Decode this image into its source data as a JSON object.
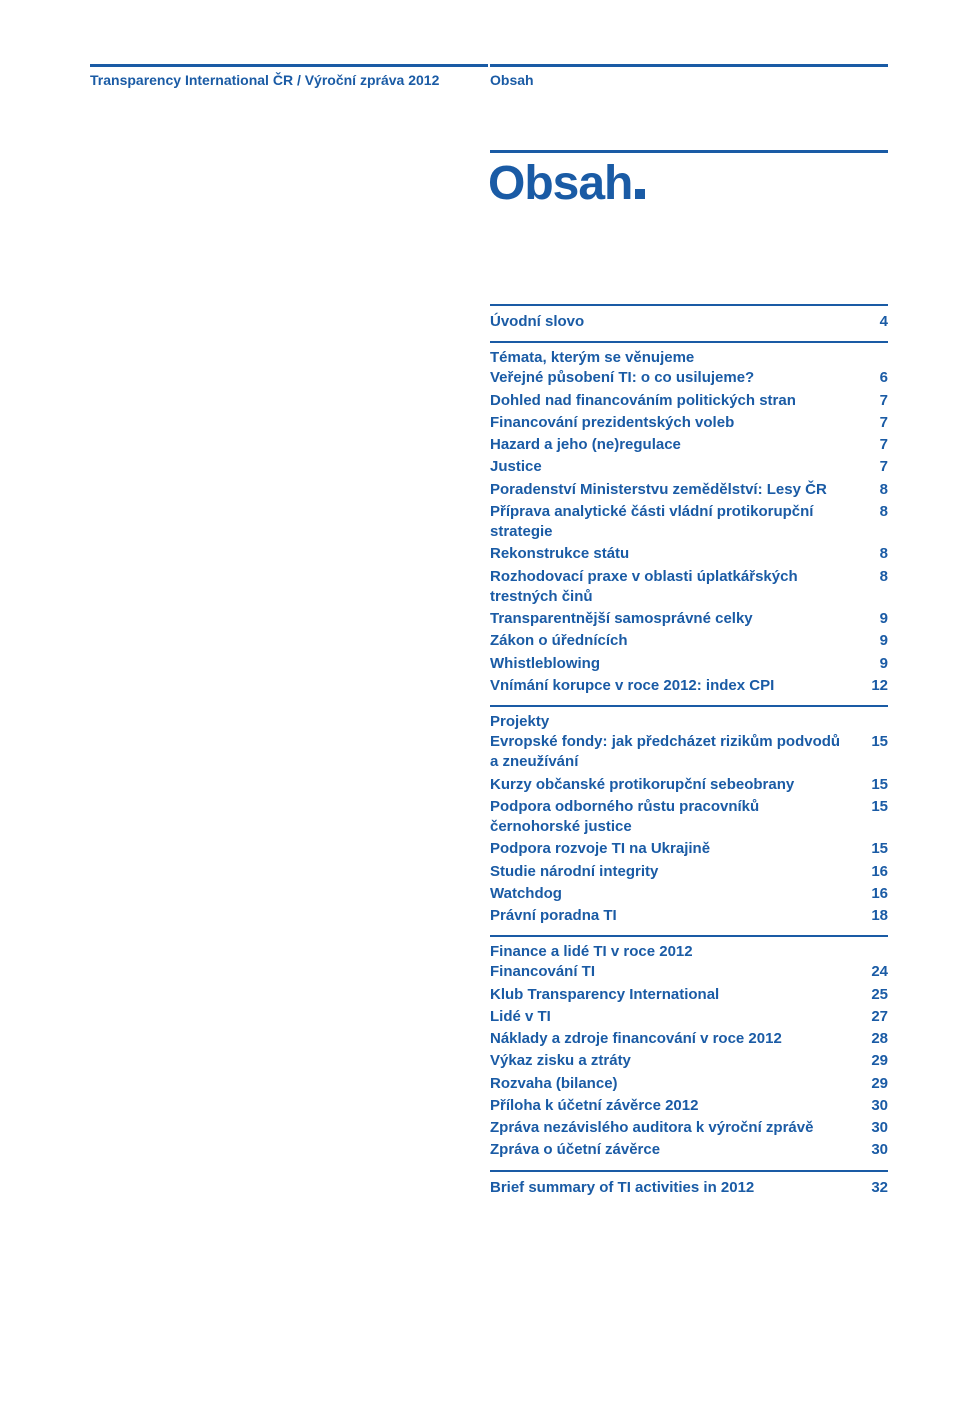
{
  "colors": {
    "accent": "#1a5ba5",
    "bg": "#ffffff"
  },
  "header": {
    "left": "Transparency International ČR / Výroční zpráva 2012",
    "right": "Obsah"
  },
  "title": "Obsah",
  "toc": {
    "intro": {
      "label": "Úvodní slovo",
      "page": "4"
    },
    "sections": [
      {
        "heading": "Témata, kterým se věnujeme",
        "items": [
          {
            "label": "Veřejné působení TI: o co usilujeme?",
            "page": "6"
          },
          {
            "label": "Dohled nad financováním politických stran",
            "page": "7"
          },
          {
            "label": "Financování prezidentských voleb",
            "page": "7"
          },
          {
            "label": "Hazard a jeho (ne)regulace",
            "page": "7"
          },
          {
            "label": "Justice",
            "page": "7"
          },
          {
            "label": "Poradenství Ministerstvu zemědělství: Lesy ČR",
            "page": "8"
          },
          {
            "label": "Příprava analytické části vládní protikorupční strategie",
            "page": "8"
          },
          {
            "label": "Rekonstrukce státu",
            "page": "8"
          },
          {
            "label": "Rozhodovací praxe v oblasti úplatkářských trestných činů",
            "page": "8"
          },
          {
            "label": "Transparentnější samosprávné celky",
            "page": "9"
          },
          {
            "label": "Zákon o úřednících",
            "page": "9"
          },
          {
            "label": "Whistleblowing",
            "page": "9"
          },
          {
            "label": "Vnímání korupce v roce 2012: index CPI",
            "page": "12"
          }
        ]
      },
      {
        "heading": "Projekty",
        "items": [
          {
            "label": "Evropské fondy: jak předcházet rizikům podvodů a zneužívání",
            "page": "15"
          },
          {
            "label": "Kurzy občanské protikorupční sebeobrany",
            "page": "15"
          },
          {
            "label": "Podpora odborného růstu pracovníků černohorské justice",
            "page": "15"
          },
          {
            "label": "Podpora rozvoje TI na Ukrajině",
            "page": "15"
          },
          {
            "label": "Studie národní integrity",
            "page": "16"
          },
          {
            "label": "Watchdog",
            "page": "16"
          },
          {
            "label": "Právní poradna TI",
            "page": "18"
          }
        ]
      },
      {
        "heading": "Finance a lidé TI v roce 2012",
        "items": [
          {
            "label": "Financování TI",
            "page": "24"
          },
          {
            "label": "Klub Transparency International",
            "page": "25"
          },
          {
            "label": "Lidé v TI",
            "page": "27"
          },
          {
            "label": "Náklady a zdroje financování v roce 2012",
            "page": "28"
          },
          {
            "label": "Výkaz zisku a ztráty",
            "page": "29"
          },
          {
            "label": "Rozvaha (bilance)",
            "page": "29"
          },
          {
            "label": "Příloha k účetní závěrce 2012",
            "page": "30"
          },
          {
            "label": "Zpráva nezávislého auditora k výroční zprávě",
            "page": "30"
          },
          {
            "label": "Zpráva o účetní závěrce",
            "page": "30"
          }
        ]
      }
    ],
    "summary": {
      "label": "Brief summary of TI activities in 2012",
      "page": "32"
    }
  }
}
